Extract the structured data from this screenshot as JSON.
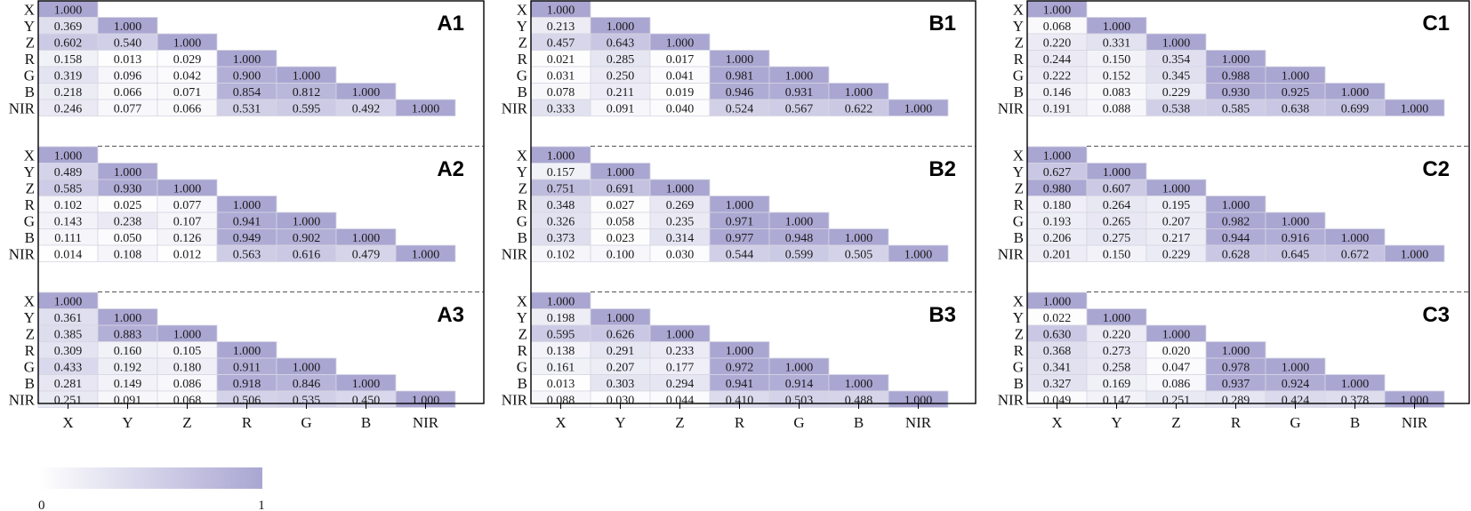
{
  "colors": {
    "low": "#ffffff",
    "high": "#a9a6d2",
    "grid": "#d6d6e3",
    "frame": "#000000"
  },
  "chart_data": {
    "type": "heatmap",
    "variables": [
      "X",
      "Y",
      "Z",
      "R",
      "G",
      "B",
      "NIR"
    ],
    "value_range": [
      0,
      1
    ],
    "legend": {
      "min_label": "0",
      "max_label": "1",
      "placement": "bottom-left"
    },
    "columns": [
      {
        "panels": [
          {
            "title": "A1",
            "values": [
              [
                1.0
              ],
              [
                0.369,
                1.0
              ],
              [
                0.602,
                0.54,
                1.0
              ],
              [
                0.158,
                0.013,
                0.029,
                1.0
              ],
              [
                0.319,
                0.096,
                0.042,
                0.9,
                1.0
              ],
              [
                0.218,
                0.066,
                0.071,
                0.854,
                0.812,
                1.0
              ],
              [
                0.246,
                0.077,
                0.066,
                0.531,
                0.595,
                0.492,
                1.0
              ]
            ]
          },
          {
            "title": "A2",
            "values": [
              [
                1.0
              ],
              [
                0.489,
                1.0
              ],
              [
                0.585,
                0.93,
                1.0
              ],
              [
                0.102,
                0.025,
                0.077,
                1.0
              ],
              [
                0.143,
                0.238,
                0.107,
                0.941,
                1.0
              ],
              [
                0.111,
                0.05,
                0.126,
                0.949,
                0.902,
                1.0
              ],
              [
                0.014,
                0.108,
                0.012,
                0.563,
                0.616,
                0.479,
                1.0
              ]
            ]
          },
          {
            "title": "A3",
            "values": [
              [
                1.0
              ],
              [
                0.361,
                1.0
              ],
              [
                0.385,
                0.883,
                1.0
              ],
              [
                0.309,
                0.16,
                0.105,
                1.0
              ],
              [
                0.433,
                0.192,
                0.18,
                0.911,
                1.0
              ],
              [
                0.281,
                0.149,
                0.086,
                0.918,
                0.846,
                1.0
              ],
              [
                0.251,
                0.091,
                0.068,
                0.506,
                0.535,
                0.45,
                1.0
              ]
            ]
          }
        ]
      },
      {
        "panels": [
          {
            "title": "B1",
            "values": [
              [
                1.0
              ],
              [
                0.213,
                1.0
              ],
              [
                0.457,
                0.643,
                1.0
              ],
              [
                0.021,
                0.285,
                0.017,
                1.0
              ],
              [
                0.031,
                0.25,
                0.041,
                0.981,
                1.0
              ],
              [
                0.078,
                0.211,
                0.019,
                0.946,
                0.931,
                1.0
              ],
              [
                0.333,
                0.091,
                0.04,
                0.524,
                0.567,
                0.622,
                1.0
              ]
            ]
          },
          {
            "title": "B2",
            "values": [
              [
                1.0
              ],
              [
                0.157,
                1.0
              ],
              [
                0.751,
                0.691,
                1.0
              ],
              [
                0.348,
                0.027,
                0.269,
                1.0
              ],
              [
                0.326,
                0.058,
                0.235,
                0.971,
                1.0
              ],
              [
                0.373,
                0.023,
                0.314,
                0.977,
                0.948,
                1.0
              ],
              [
                0.102,
                0.1,
                0.03,
                0.544,
                0.599,
                0.505,
                1.0
              ]
            ]
          },
          {
            "title": "B3",
            "values": [
              [
                1.0
              ],
              [
                0.198,
                1.0
              ],
              [
                0.595,
                0.626,
                1.0
              ],
              [
                0.138,
                0.291,
                0.233,
                1.0
              ],
              [
                0.161,
                0.207,
                0.177,
                0.972,
                1.0
              ],
              [
                0.013,
                0.303,
                0.294,
                0.941,
                0.914,
                1.0
              ],
              [
                0.088,
                0.03,
                0.044,
                0.41,
                0.503,
                0.488,
                1.0
              ]
            ]
          }
        ]
      },
      {
        "panels": [
          {
            "title": "C1",
            "values": [
              [
                1.0
              ],
              [
                0.068,
                1.0
              ],
              [
                0.22,
                0.331,
                1.0
              ],
              [
                0.244,
                0.15,
                0.354,
                1.0
              ],
              [
                0.222,
                0.152,
                0.345,
                0.988,
                1.0
              ],
              [
                0.146,
                0.083,
                0.229,
                0.93,
                0.925,
                1.0
              ],
              [
                0.191,
                0.088,
                0.538,
                0.585,
                0.638,
                0.699,
                1.0
              ]
            ]
          },
          {
            "title": "C2",
            "values": [
              [
                1.0
              ],
              [
                0.627,
                1.0
              ],
              [
                0.98,
                0.607,
                1.0
              ],
              [
                0.18,
                0.264,
                0.195,
                1.0
              ],
              [
                0.193,
                0.265,
                0.207,
                0.982,
                1.0
              ],
              [
                0.206,
                0.275,
                0.217,
                0.944,
                0.916,
                1.0
              ],
              [
                0.201,
                0.15,
                0.229,
                0.628,
                0.645,
                0.672,
                1.0
              ]
            ]
          },
          {
            "title": "C3",
            "values": [
              [
                1.0
              ],
              [
                0.022,
                1.0
              ],
              [
                0.63,
                0.22,
                1.0
              ],
              [
                0.368,
                0.273,
                0.02,
                1.0
              ],
              [
                0.341,
                0.258,
                0.047,
                0.978,
                1.0
              ],
              [
                0.327,
                0.169,
                0.086,
                0.937,
                0.924,
                1.0
              ],
              [
                0.049,
                0.147,
                0.251,
                0.289,
                0.424,
                0.378,
                1.0
              ]
            ]
          }
        ]
      }
    ]
  }
}
